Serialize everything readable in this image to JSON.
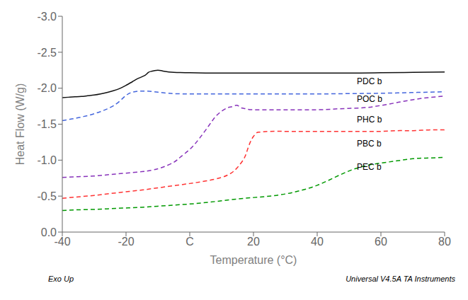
{
  "chart_data": {
    "type": "line",
    "xlabel": "Temperature (°C)",
    "ylabel": "Heat Flow (W/g)",
    "xlim": [
      -40,
      80
    ],
    "xticks": [
      -40,
      -20,
      {
        "value": 0,
        "label": "C"
      },
      20,
      40,
      60,
      80
    ],
    "ylim": [
      0,
      -3
    ],
    "yticks": [
      {
        "value": 0,
        "label": "0.0"
      },
      -0.5,
      {
        "value": -1,
        "label": "-1.0"
      },
      -1.5,
      {
        "value": -2,
        "label": "-2.0"
      },
      -2.5,
      {
        "value": -3,
        "label": "-3.0"
      }
    ],
    "grid": false,
    "series": [
      {
        "name": "PEC b",
        "color": "#009900",
        "line_style": "dashed",
        "x": [
          -40,
          -35,
          -30,
          -25,
          -20,
          -15,
          -10,
          -5,
          0,
          5,
          10,
          15,
          20,
          25,
          30,
          35,
          40,
          45,
          50,
          55,
          60,
          65,
          70,
          75,
          80
        ],
        "values": [
          -0.3,
          -0.31,
          -0.315,
          -0.325,
          -0.335,
          -0.345,
          -0.36,
          -0.375,
          -0.39,
          -0.41,
          -0.435,
          -0.46,
          -0.48,
          -0.5,
          -0.53,
          -0.58,
          -0.65,
          -0.75,
          -0.85,
          -0.92,
          -0.96,
          -0.99,
          -1.02,
          -1.03,
          -1.04
        ]
      },
      {
        "name": "PBC b",
        "color": "#ff3333",
        "line_style": "dashed",
        "x": [
          -40,
          -35,
          -30,
          -25,
          -20,
          -15,
          -10,
          -5,
          0,
          5,
          10,
          13,
          15,
          17,
          18,
          19,
          20,
          21,
          22,
          25,
          30,
          35,
          40,
          45,
          50,
          55,
          60,
          65,
          70,
          75,
          80
        ],
        "values": [
          -0.47,
          -0.49,
          -0.51,
          -0.535,
          -0.56,
          -0.585,
          -0.615,
          -0.645,
          -0.675,
          -0.71,
          -0.76,
          -0.82,
          -0.9,
          -1.02,
          -1.13,
          -1.25,
          -1.33,
          -1.38,
          -1.39,
          -1.4,
          -1.4,
          -1.4,
          -1.4,
          -1.4,
          -1.4,
          -1.4,
          -1.4,
          -1.41,
          -1.41,
          -1.42,
          -1.42
        ]
      },
      {
        "name": "PHC b",
        "color": "#8833bb",
        "line_style": "dashed",
        "x": [
          -40,
          -35,
          -30,
          -25,
          -20,
          -15,
          -12,
          -10,
          -8,
          -5,
          -3,
          0,
          3,
          6,
          8,
          10,
          12,
          13,
          14,
          15,
          16,
          17,
          18,
          20,
          25,
          30,
          35,
          40,
          45,
          50,
          55,
          60,
          65,
          70,
          75,
          80
        ],
        "values": [
          -0.76,
          -0.77,
          -0.78,
          -0.8,
          -0.82,
          -0.84,
          -0.86,
          -0.88,
          -0.91,
          -0.97,
          -1.04,
          -1.15,
          -1.3,
          -1.48,
          -1.6,
          -1.68,
          -1.73,
          -1.74,
          -1.755,
          -1.76,
          -1.73,
          -1.72,
          -1.71,
          -1.7,
          -1.7,
          -1.7,
          -1.7,
          -1.7,
          -1.71,
          -1.72,
          -1.73,
          -1.76,
          -1.8,
          -1.84,
          -1.87,
          -1.89
        ]
      },
      {
        "name": "POC b",
        "color": "#4466dd",
        "line_style": "dashed",
        "x": [
          -40,
          -38,
          -36,
          -34,
          -32,
          -30,
          -28,
          -26,
          -24,
          -22,
          -20,
          -18,
          -16,
          -14,
          -12,
          -10,
          -8,
          -5,
          0,
          5,
          10,
          20,
          30,
          40,
          50,
          60,
          70,
          80
        ],
        "values": [
          -1.55,
          -1.565,
          -1.58,
          -1.6,
          -1.62,
          -1.645,
          -1.675,
          -1.71,
          -1.755,
          -1.82,
          -1.9,
          -1.945,
          -1.96,
          -1.96,
          -1.955,
          -1.945,
          -1.935,
          -1.925,
          -1.92,
          -1.92,
          -1.92,
          -1.92,
          -1.92,
          -1.92,
          -1.925,
          -1.93,
          -1.94,
          -1.95
        ]
      },
      {
        "name": "PDC b",
        "color": "#111111",
        "line_style": "solid",
        "x": [
          -40,
          -38,
          -36,
          -34,
          -32,
          -30,
          -28,
          -26,
          -24,
          -22,
          -20,
          -18,
          -16,
          -14,
          -13,
          -12,
          -11,
          -10,
          -9,
          -8,
          -5,
          0,
          5,
          10,
          20,
          30,
          40,
          50,
          60,
          70,
          80
        ],
        "values": [
          -1.87,
          -1.875,
          -1.88,
          -1.885,
          -1.895,
          -1.905,
          -1.92,
          -1.94,
          -1.965,
          -1.995,
          -2.04,
          -2.09,
          -2.14,
          -2.18,
          -2.22,
          -2.235,
          -2.245,
          -2.25,
          -2.245,
          -2.235,
          -2.22,
          -2.215,
          -2.21,
          -2.21,
          -2.21,
          -2.21,
          -2.21,
          -2.21,
          -2.215,
          -2.22,
          -2.225
        ]
      }
    ],
    "annotations": [
      {
        "text": "PEC b",
        "x": 52,
        "y": -0.91,
        "color": "#000000"
      },
      {
        "text": "PBC b",
        "x": 52,
        "y": -1.23,
        "color": "#000000"
      },
      {
        "text": "PHC b",
        "x": 52,
        "y": -1.57,
        "color": "#000000"
      },
      {
        "text": "POC b",
        "x": 52,
        "y": -1.85,
        "color": "#000000"
      },
      {
        "text": "PDC b",
        "x": 52,
        "y": -2.1,
        "color": "#000000"
      }
    ],
    "footer": [
      "Exo Up",
      "Universal V4.5A TA Instruments"
    ]
  }
}
